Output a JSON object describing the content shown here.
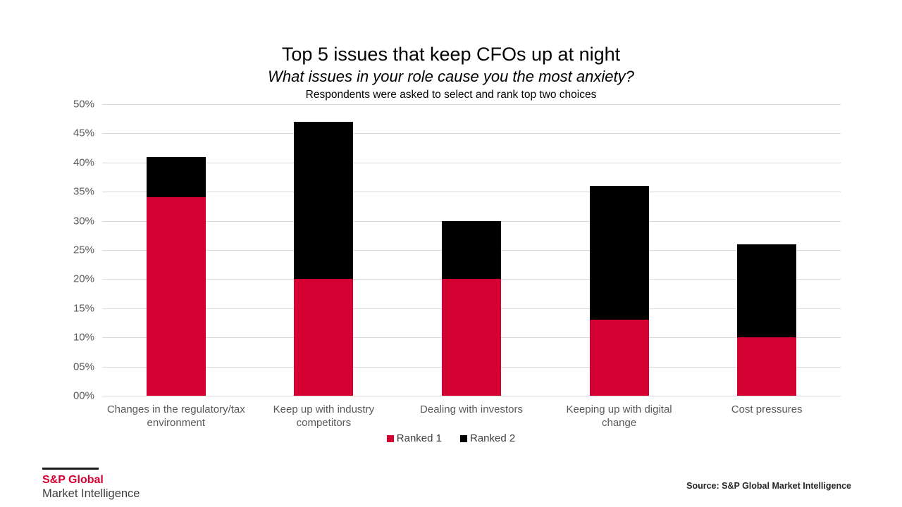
{
  "header": {
    "title": "Top 5 issues that keep CFOs up at night",
    "subtitle": "What issues in your role cause you the most anxiety?",
    "note": "Respondents were asked to select and rank top two choices"
  },
  "chart_data": {
    "type": "bar",
    "stacked": true,
    "title": "Top 5 issues that keep CFOs up at night",
    "subtitle": "What issues in your role cause you the most anxiety?",
    "note": "Respondents were asked to select and rank top two choices",
    "categories": [
      "Changes in the regulatory/tax environment",
      "Keep up with industry competitors",
      "Dealing with investors",
      "Keeping up with digital change",
      "Cost pressures"
    ],
    "category_lines": [
      [
        "Changes in the regulatory/tax",
        "environment"
      ],
      [
        "Keep up with industry",
        "competitors"
      ],
      [
        "Dealing with investors"
      ],
      [
        "Keeping up with digital",
        "change"
      ],
      [
        "Cost pressures"
      ]
    ],
    "series": [
      {
        "name": "Ranked 1",
        "color": "#d50032",
        "values": [
          34,
          20,
          20,
          13,
          10
        ]
      },
      {
        "name": "Ranked 2",
        "color": "#000000",
        "values": [
          7,
          27,
          10,
          23,
          16
        ]
      }
    ],
    "stack_totals": [
      41,
      47,
      30,
      36,
      26
    ],
    "ylim": [
      0,
      50
    ],
    "ytick_step": 5,
    "ytick_labels": [
      "00%",
      "05%",
      "10%",
      "15%",
      "20%",
      "25%",
      "30%",
      "35%",
      "40%",
      "45%",
      "50%"
    ],
    "grid": true,
    "legend_position": "bottom"
  },
  "legend": {
    "items": [
      {
        "label": "Ranked 1",
        "color": "#d50032"
      },
      {
        "label": "Ranked 2",
        "color": "#000000"
      }
    ]
  },
  "footer": {
    "logo_line1": "S&P Global",
    "logo_line2": "Market Intelligence",
    "source": "Source: S&P Global Market Intelligence"
  },
  "colors": {
    "ranked1": "#d50032",
    "ranked2": "#000000",
    "gridline": "#d9d9d9",
    "axis_text": "#595959"
  }
}
